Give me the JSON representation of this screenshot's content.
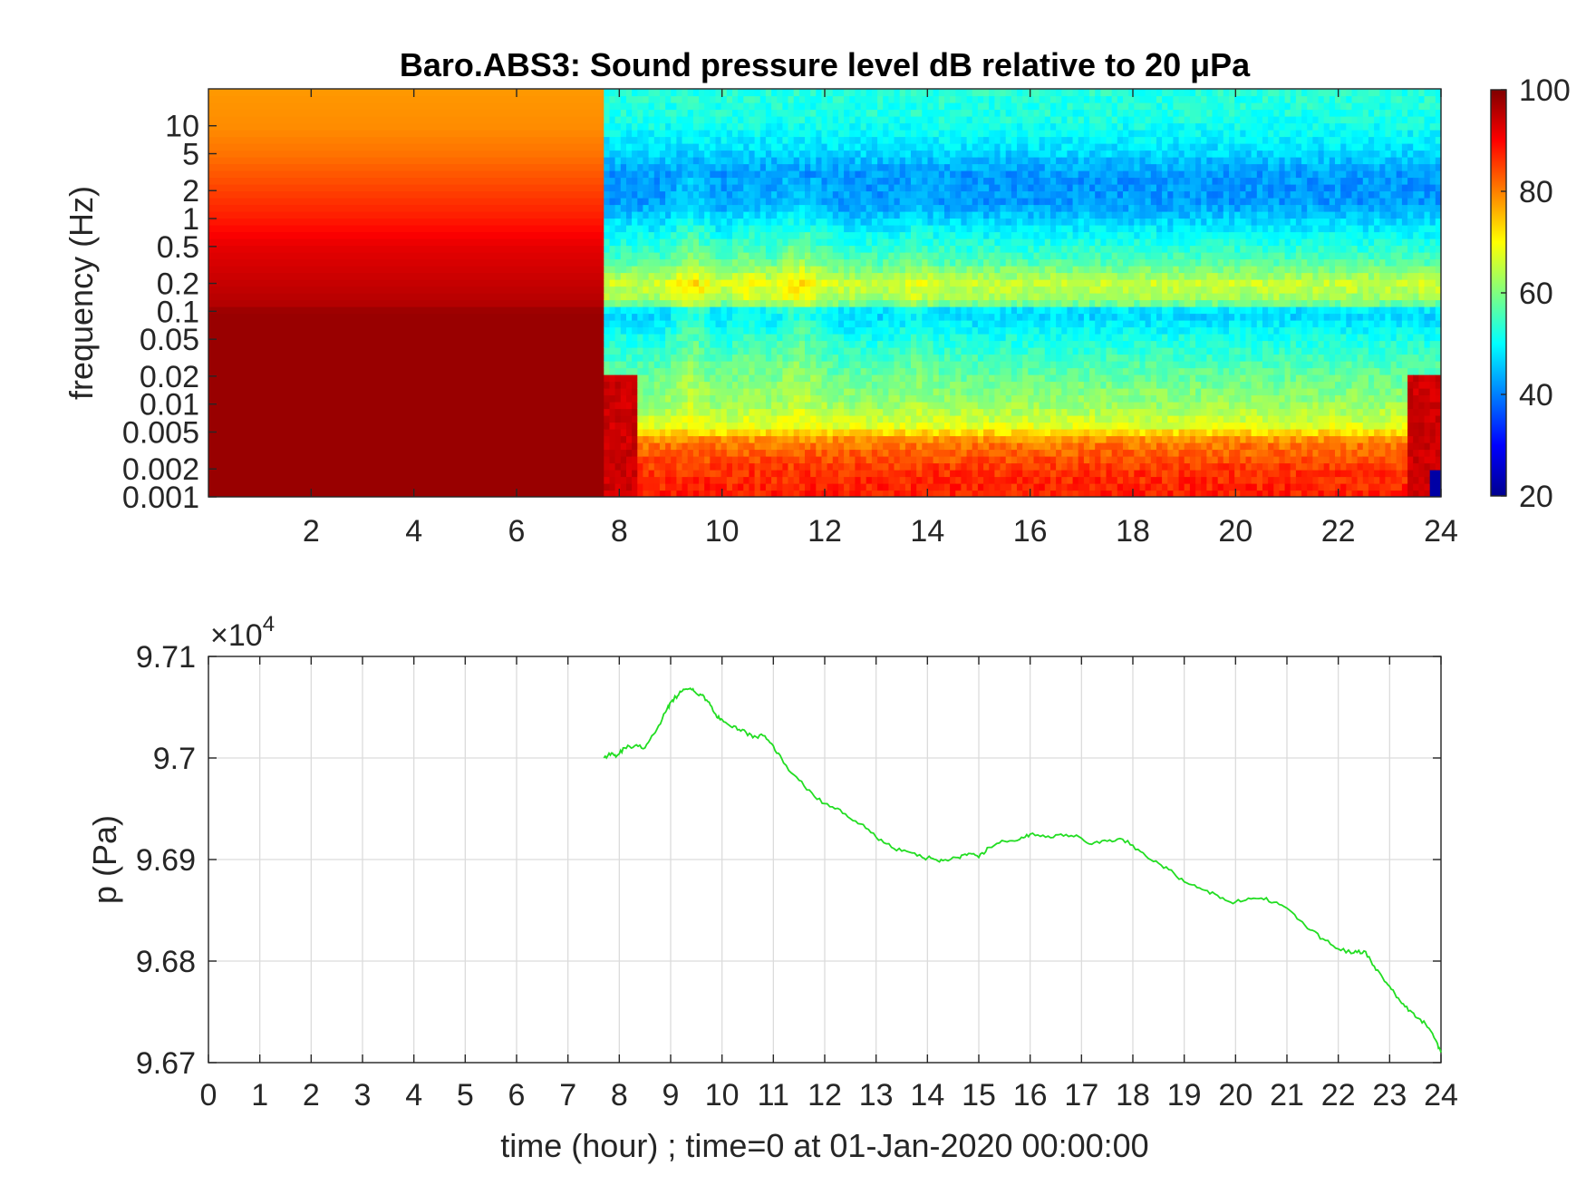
{
  "chart_data": [
    {
      "type": "heatmap",
      "title": "Baro.ABS3: Sound pressure level dB relative to 20 μPa",
      "ylabel": "frequency (Hz)",
      "xlabel": "",
      "x_range": [
        0,
        24
      ],
      "x_ticks": [
        "2",
        "4",
        "6",
        "8",
        "10",
        "12",
        "14",
        "16",
        "18",
        "20",
        "22",
        "24"
      ],
      "y_scale": "log",
      "y_range": [
        0.001,
        25
      ],
      "y_ticks": [
        "10",
        "5",
        "2",
        "1",
        "0.5",
        "0.2",
        "0.1",
        "0.05",
        "0.02",
        "0.01",
        "0.005",
        "0.002",
        "0.001"
      ],
      "colormap": "jet",
      "colorbar": {
        "min": 20,
        "max": 100,
        "ticks": [
          "100",
          "80",
          "60",
          "40",
          "20"
        ]
      },
      "segments": [
        {
          "x_start": 0,
          "x_end": 7.7,
          "description_levels_by_freq": [
            {
              "f": 0.001,
              "db": 98
            },
            {
              "f": 0.1,
              "db": 98
            },
            {
              "f": 0.12,
              "db": 96
            },
            {
              "f": 0.5,
              "db": 92
            },
            {
              "f": 1,
              "db": 88
            },
            {
              "f": 2,
              "db": 85
            },
            {
              "f": 5,
              "db": 81
            },
            {
              "f": 10,
              "db": 79
            },
            {
              "f": 25,
              "db": 78
            }
          ]
        },
        {
          "x_start": 7.7,
          "x_end": 24,
          "description_levels_by_freq": [
            {
              "f": 0.001,
              "db": 88
            },
            {
              "f": 0.002,
              "db": 86
            },
            {
              "f": 0.004,
              "db": 80
            },
            {
              "f": 0.006,
              "db": 67
            },
            {
              "f": 0.01,
              "db": 62
            },
            {
              "f": 0.02,
              "db": 58
            },
            {
              "f": 0.05,
              "db": 52
            },
            {
              "f": 0.1,
              "db": 46
            },
            {
              "f": 0.13,
              "db": 62
            },
            {
              "f": 0.2,
              "db": 66
            },
            {
              "f": 0.35,
              "db": 56
            },
            {
              "f": 0.7,
              "db": 50
            },
            {
              "f": 1.5,
              "db": 42
            },
            {
              "f": 3,
              "db": 42
            },
            {
              "f": 6,
              "db": 48
            },
            {
              "f": 12,
              "db": 52
            },
            {
              "f": 25,
              "db": 53
            }
          ]
        }
      ]
    },
    {
      "type": "line",
      "xlabel": "time (hour) ; time=0 at 01-Jan-2020 00:00:00",
      "ylabel": "p (Pa)",
      "y_multiplier": "×10",
      "y_multiplier_exp": "4",
      "x_range": [
        0,
        24
      ],
      "ylim": [
        9.67,
        9.71
      ],
      "x_ticks": [
        "0",
        "1",
        "2",
        "3",
        "4",
        "5",
        "6",
        "7",
        "8",
        "9",
        "10",
        "11",
        "12",
        "13",
        "14",
        "15",
        "16",
        "17",
        "18",
        "19",
        "20",
        "21",
        "22",
        "23",
        "24"
      ],
      "y_ticks": [
        "9.71",
        "9.7",
        "9.69",
        "9.68",
        "9.67"
      ],
      "grid": true,
      "line_color": "#22dd22",
      "series": [
        {
          "x": [
            7.7,
            7.85,
            7.95,
            8.1,
            8.3,
            8.5,
            8.7,
            8.9,
            9.0,
            9.1,
            9.2,
            9.35,
            9.45,
            9.6,
            9.75,
            9.9,
            10.0,
            10.2,
            10.4,
            10.6,
            10.8,
            11.0,
            11.2,
            11.5,
            11.8,
            12.1,
            12.4,
            12.7,
            13.0,
            13.3,
            13.6,
            13.9,
            14.1,
            14.3,
            14.6,
            14.8,
            15.0,
            15.2,
            15.5,
            15.8,
            16.0,
            16.3,
            16.6,
            16.9,
            17.2,
            17.5,
            17.8,
            18.1,
            18.4,
            18.7,
            19.0,
            19.3,
            19.6,
            19.9,
            20.2,
            20.5,
            20.8,
            21.1,
            21.4,
            21.7,
            22.0,
            22.3,
            22.5,
            22.7,
            22.9,
            23.1,
            23.3,
            23.5,
            23.7,
            23.9,
            24.0
          ],
          "y": [
            9.7,
            9.7005,
            9.7002,
            9.701,
            9.7012,
            9.701,
            9.7025,
            9.7045,
            9.7055,
            9.706,
            9.7065,
            9.7068,
            9.7066,
            9.7062,
            9.7055,
            9.704,
            9.7038,
            9.703,
            9.7028,
            9.702,
            9.7022,
            9.7012,
            9.6995,
            9.6978,
            9.6962,
            9.6952,
            9.6945,
            9.6935,
            9.6922,
            9.6912,
            9.6908,
            9.6902,
            9.6901,
            9.6899,
            9.6902,
            9.6906,
            9.6902,
            9.6912,
            9.6918,
            9.692,
            9.6925,
            9.6922,
            9.6925,
            9.6924,
            9.6915,
            9.6918,
            9.692,
            9.691,
            9.6898,
            9.689,
            9.6878,
            9.6872,
            9.6866,
            9.6858,
            9.686,
            9.6862,
            9.6858,
            9.6848,
            9.6832,
            9.6822,
            9.6812,
            9.6808,
            9.681,
            9.6795,
            9.678,
            9.6768,
            9.6755,
            9.6745,
            9.6738,
            9.6722,
            9.671
          ]
        }
      ]
    }
  ]
}
